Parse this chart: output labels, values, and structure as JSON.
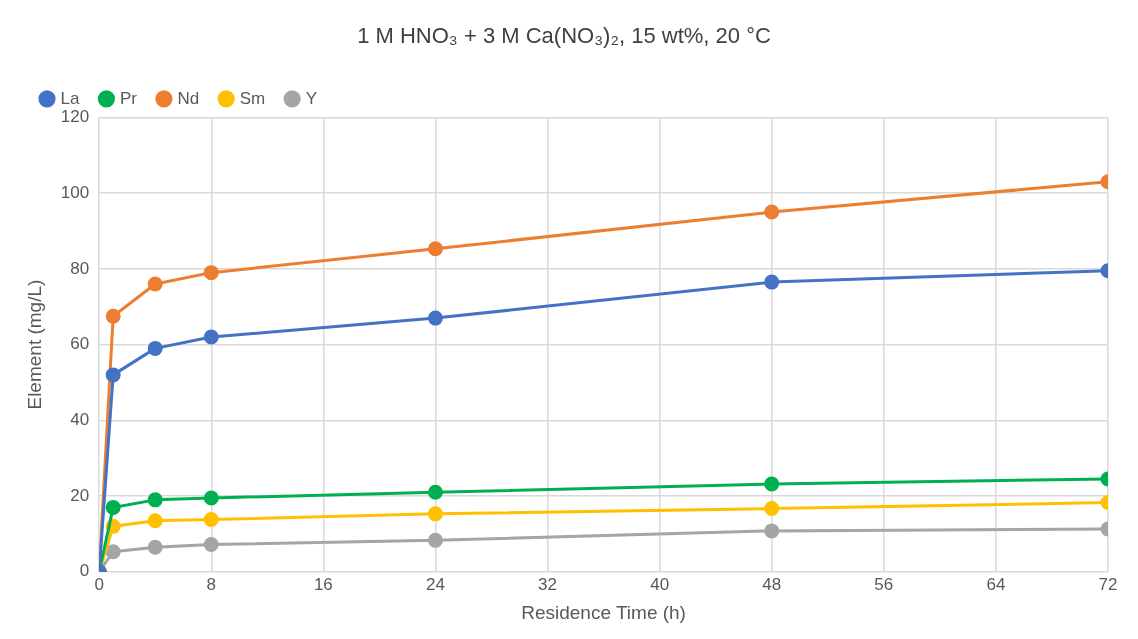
{
  "chart_data": {
    "type": "line",
    "title": "1 M HNO₃ + 3 M Ca(NO₃)₂, 15 wt%, 20 °C",
    "xlabel": "Residence Time (h)",
    "ylabel": "Element (mg/L)",
    "x": [
      0,
      1,
      4,
      8,
      24,
      48,
      72
    ],
    "series": [
      {
        "name": "La",
        "color": "#4472c4",
        "values": [
          0,
          52,
          59,
          62,
          67,
          76.5,
          79.5
        ]
      },
      {
        "name": "Pr",
        "color": "#00b050",
        "values": [
          0,
          17,
          19,
          19.5,
          21,
          23.2,
          24.5
        ]
      },
      {
        "name": "Nd",
        "color": "#ed7d31",
        "values": [
          0,
          67.5,
          76,
          79,
          85.3,
          95,
          103
        ]
      },
      {
        "name": "Sm",
        "color": "#ffc000",
        "values": [
          0,
          12,
          13.5,
          13.8,
          15.3,
          16.7,
          18.3
        ]
      },
      {
        "name": "Y",
        "color": "#a5a5a5",
        "values": [
          0,
          5.3,
          6.5,
          7.2,
          8.3,
          10.8,
          11.3
        ]
      }
    ],
    "xlim": [
      0,
      72
    ],
    "xticks": [
      0,
      8,
      16,
      24,
      32,
      40,
      48,
      56,
      64,
      72
    ],
    "ylim": [
      0,
      120
    ],
    "yticks": [
      0,
      20,
      40,
      60,
      80,
      100,
      120
    ],
    "grid": true,
    "legend": "top left",
    "marker": "circle",
    "line_style": "solid"
  }
}
